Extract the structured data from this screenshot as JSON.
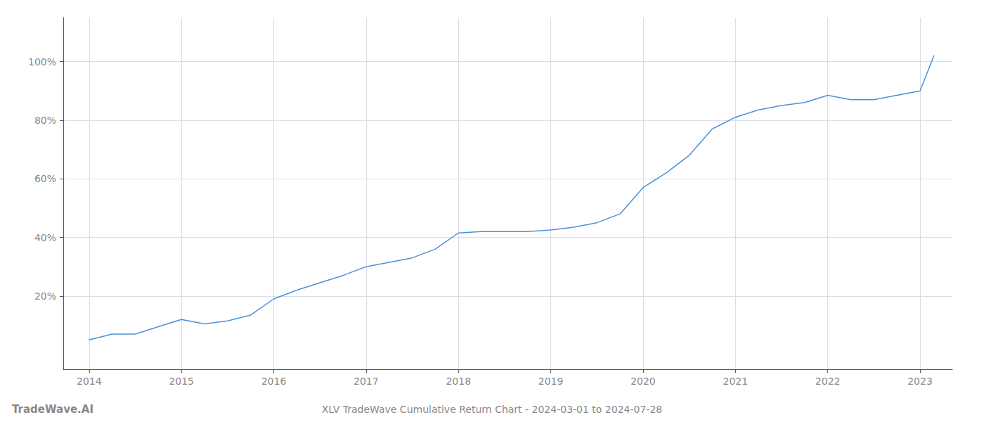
{
  "chart_data": {
    "type": "line",
    "title": "XLV TradeWave Cumulative Return Chart - 2024-03-01 to 2024-07-28",
    "annotations": [
      "TradeWave.AI"
    ],
    "color": "#4a90d9",
    "x": [
      2014.0,
      2014.25,
      2014.5,
      2014.75,
      2015.0,
      2015.25,
      2015.5,
      2015.75,
      2016.0,
      2016.25,
      2016.5,
      2016.75,
      2017.0,
      2017.25,
      2017.5,
      2017.75,
      2018.0,
      2018.25,
      2018.5,
      2018.75,
      2019.0,
      2019.25,
      2019.5,
      2019.75,
      2020.0,
      2020.25,
      2020.5,
      2020.75,
      2021.0,
      2021.25,
      2021.5,
      2021.75,
      2022.0,
      2022.25,
      2022.5,
      2022.75,
      2023.0,
      2023.15
    ],
    "values": [
      5.0,
      7.0,
      7.0,
      9.5,
      12.0,
      10.5,
      11.5,
      13.5,
      19.0,
      22.0,
      24.5,
      27.0,
      30.0,
      31.5,
      33.0,
      36.0,
      41.5,
      42.0,
      42.0,
      42.0,
      42.5,
      43.5,
      45.0,
      48.0,
      57.0,
      62.0,
      68.0,
      77.0,
      81.0,
      83.5,
      85.0,
      86.0,
      88.5,
      87.0,
      87.0,
      88.5,
      90.0,
      102.0
    ],
    "xlim": [
      2013.72,
      2023.35
    ],
    "xticks": [
      2014,
      2015,
      2016,
      2017,
      2018,
      2019,
      2020,
      2021,
      2022,
      2023
    ],
    "ylim": [
      -5,
      115
    ],
    "yticks": [
      {
        "value": 20,
        "label": "20%"
      },
      {
        "value": 40,
        "label": "40%"
      },
      {
        "value": 60,
        "label": "60%"
      },
      {
        "value": 80,
        "label": "80%"
      },
      {
        "value": 100,
        "label": "100%"
      }
    ],
    "grid": true
  }
}
